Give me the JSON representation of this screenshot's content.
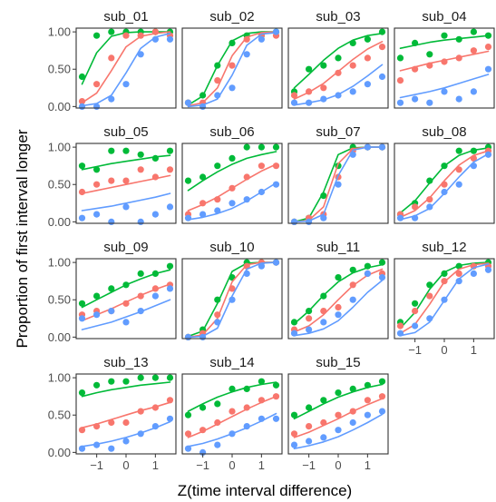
{
  "chart_data": {
    "type": "scatter",
    "layout": "faceted 4x4 grid",
    "xlabel": "Z(time interval difference)",
    "ylabel": "Proportion of first interval longer",
    "xlim": [
      -1.7,
      1.7
    ],
    "ylim": [
      -0.02,
      1.05
    ],
    "x_ticks": [
      -1,
      0,
      1
    ],
    "y_ticks": [
      0.0,
      0.5,
      1.0
    ],
    "y_tick_labels": [
      "0.00",
      "0.50",
      "1.00"
    ],
    "x_tick_labels": [
      "−1",
      "0",
      "1"
    ],
    "grid": false,
    "legend": "none",
    "series_colors": [
      "#00BA38",
      "#F8766D",
      "#619CFF"
    ],
    "x_points": [
      -1.5,
      -1.0,
      -0.5,
      0.0,
      0.5,
      1.0,
      1.5
    ],
    "panels": [
      {
        "title": "sub_01",
        "series": [
          {
            "values": [
              0.4,
              0.95,
              1.0,
              1.0,
              1.0,
              1.0,
              1.0
            ],
            "fit": [
              0.3,
              0.72,
              0.94,
              0.99,
              1.0,
              1.0,
              1.0
            ]
          },
          {
            "values": [
              0.07,
              0.3,
              0.65,
              0.95,
              0.95,
              1.0,
              0.95
            ],
            "fit": [
              0.05,
              0.18,
              0.48,
              0.8,
              0.94,
              0.98,
              1.0
            ]
          },
          {
            "values": [
              0.0,
              0.0,
              0.1,
              0.3,
              0.7,
              0.9,
              0.9
            ],
            "fit": [
              0.01,
              0.04,
              0.15,
              0.45,
              0.78,
              0.93,
              0.98
            ]
          }
        ]
      },
      {
        "title": "sub_02",
        "series": [
          {
            "values": [
              0.05,
              0.15,
              0.55,
              0.85,
              0.95,
              0.95,
              1.0
            ],
            "fit": [
              0.02,
              0.14,
              0.55,
              0.88,
              0.98,
              1.0,
              1.0
            ]
          },
          {
            "values": [
              0.05,
              0.05,
              0.35,
              0.55,
              0.9,
              0.95,
              0.95
            ],
            "fit": [
              0.01,
              0.05,
              0.25,
              0.68,
              0.93,
              0.99,
              1.0
            ]
          },
          {
            "values": [
              0.05,
              0.0,
              0.15,
              0.25,
              0.7,
              0.9,
              1.0
            ],
            "fit": [
              0.0,
              0.02,
              0.1,
              0.42,
              0.82,
              0.97,
              0.99
            ]
          }
        ]
      },
      {
        "title": "sub_03",
        "series": [
          {
            "values": [
              0.2,
              0.5,
              0.55,
              0.65,
              0.85,
              0.9,
              1.0
            ],
            "fit": [
              0.25,
              0.43,
              0.62,
              0.78,
              0.89,
              0.95,
              0.98
            ]
          },
          {
            "values": [
              0.15,
              0.2,
              0.25,
              0.45,
              0.55,
              0.65,
              0.8
            ],
            "fit": [
              0.1,
              0.19,
              0.31,
              0.47,
              0.63,
              0.77,
              0.87
            ]
          },
          {
            "values": [
              0.05,
              0.05,
              0.1,
              0.15,
              0.2,
              0.3,
              0.4
            ],
            "fit": [
              0.02,
              0.05,
              0.09,
              0.16,
              0.27,
              0.41,
              0.56
            ]
          }
        ]
      },
      {
        "title": "sub_04",
        "series": [
          {
            "values": [
              0.65,
              0.85,
              0.7,
              0.95,
              0.9,
              1.0,
              0.95
            ],
            "fit": [
              0.78,
              0.82,
              0.86,
              0.89,
              0.91,
              0.93,
              0.95
            ]
          },
          {
            "values": [
              0.35,
              0.5,
              0.55,
              0.6,
              0.65,
              0.75,
              0.8
            ],
            "fit": [
              0.48,
              0.53,
              0.58,
              0.62,
              0.66,
              0.7,
              0.74
            ]
          },
          {
            "values": [
              0.05,
              0.1,
              0.05,
              0.2,
              0.1,
              0.2,
              0.5
            ],
            "fit": [
              0.12,
              0.16,
              0.2,
              0.25,
              0.31,
              0.37,
              0.43
            ]
          }
        ]
      },
      {
        "title": "sub_05",
        "series": [
          {
            "values": [
              0.75,
              0.7,
              0.95,
              0.95,
              0.9,
              0.85,
              0.95
            ],
            "fit": [
              0.7,
              0.74,
              0.78,
              0.81,
              0.84,
              0.87,
              0.89
            ]
          },
          {
            "values": [
              0.4,
              0.5,
              0.55,
              0.55,
              0.7,
              0.6,
              0.7
            ],
            "fit": [
              0.38,
              0.42,
              0.46,
              0.5,
              0.54,
              0.58,
              0.62
            ]
          },
          {
            "values": [
              0.05,
              0.1,
              0.0,
              0.2,
              0.0,
              0.1,
              0.2
            ],
            "fit": [
              0.15,
              0.18,
              0.21,
              0.25,
              0.29,
              0.33,
              0.38
            ]
          }
        ]
      },
      {
        "title": "sub_06",
        "series": [
          {
            "values": [
              0.55,
              0.6,
              0.75,
              0.85,
              1.0,
              1.0,
              1.0
            ],
            "fit": [
              0.42,
              0.55,
              0.67,
              0.77,
              0.85,
              0.9,
              0.94
            ]
          },
          {
            "values": [
              0.1,
              0.25,
              0.3,
              0.45,
              0.6,
              0.75,
              0.75
            ],
            "fit": [
              0.15,
              0.23,
              0.33,
              0.45,
              0.57,
              0.68,
              0.77
            ]
          },
          {
            "values": [
              0.05,
              0.1,
              0.15,
              0.25,
              0.3,
              0.4,
              0.5
            ],
            "fit": [
              0.03,
              0.06,
              0.11,
              0.18,
              0.28,
              0.4,
              0.52
            ]
          }
        ]
      },
      {
        "title": "sub_07",
        "series": [
          {
            "values": [
              0.0,
              0.05,
              0.35,
              0.75,
              1.0,
              1.0,
              1.0
            ],
            "fit": [
              0.0,
              0.05,
              0.4,
              0.9,
              0.99,
              1.0,
              1.0
            ]
          },
          {
            "values": [
              0.0,
              0.05,
              0.1,
              0.6,
              0.95,
              1.0,
              1.0
            ],
            "fit": [
              0.0,
              0.02,
              0.2,
              0.78,
              0.98,
              1.0,
              1.0
            ]
          },
          {
            "values": [
              0.0,
              0.0,
              0.05,
              0.5,
              0.9,
              1.0,
              1.0
            ],
            "fit": [
              0.0,
              0.01,
              0.1,
              0.62,
              0.96,
              1.0,
              1.0
            ]
          }
        ]
      },
      {
        "title": "sub_08",
        "series": [
          {
            "values": [
              0.1,
              0.25,
              0.55,
              0.75,
              0.95,
              0.95,
              1.0
            ],
            "fit": [
              0.12,
              0.28,
              0.52,
              0.75,
              0.89,
              0.96,
              0.99
            ]
          },
          {
            "values": [
              0.1,
              0.2,
              0.3,
              0.5,
              0.7,
              0.85,
              0.95
            ],
            "fit": [
              0.06,
              0.15,
              0.32,
              0.55,
              0.76,
              0.89,
              0.95
            ]
          },
          {
            "values": [
              0.05,
              0.05,
              0.2,
              0.4,
              0.5,
              0.75,
              0.9
            ],
            "fit": [
              0.03,
              0.08,
              0.18,
              0.38,
              0.6,
              0.8,
              0.91
            ]
          }
        ]
      },
      {
        "title": "sub_09",
        "series": [
          {
            "values": [
              0.45,
              0.55,
              0.65,
              0.7,
              0.85,
              0.85,
              0.95
            ],
            "fit": [
              0.4,
              0.5,
              0.6,
              0.7,
              0.78,
              0.85,
              0.9
            ]
          },
          {
            "values": [
              0.3,
              0.35,
              0.35,
              0.45,
              0.55,
              0.65,
              0.7
            ],
            "fit": [
              0.22,
              0.3,
              0.38,
              0.47,
              0.56,
              0.64,
              0.71
            ]
          },
          {
            "values": [
              0.25,
              0.3,
              0.35,
              0.2,
              0.35,
              0.55,
              0.65
            ],
            "fit": [
              0.1,
              0.15,
              0.2,
              0.27,
              0.34,
              0.42,
              0.5
            ]
          }
        ]
      },
      {
        "title": "sub_10",
        "series": [
          {
            "values": [
              0.0,
              0.1,
              0.5,
              0.8,
              1.0,
              1.0,
              1.0
            ],
            "fit": [
              0.01,
              0.08,
              0.45,
              0.88,
              0.99,
              1.0,
              1.0
            ]
          },
          {
            "values": [
              0.0,
              0.05,
              0.3,
              0.65,
              0.95,
              1.0,
              1.0
            ],
            "fit": [
              0.0,
              0.03,
              0.25,
              0.74,
              0.97,
              1.0,
              1.0
            ]
          },
          {
            "values": [
              0.0,
              0.0,
              0.2,
              0.5,
              0.85,
              0.95,
              1.0
            ],
            "fit": [
              0.0,
              0.01,
              0.12,
              0.55,
              0.91,
              0.99,
              1.0
            ]
          }
        ]
      },
      {
        "title": "sub_11",
        "series": [
          {
            "values": [
              0.2,
              0.35,
              0.55,
              0.8,
              0.9,
              0.95,
              1.0
            ],
            "fit": [
              0.18,
              0.35,
              0.56,
              0.74,
              0.86,
              0.93,
              0.97
            ]
          },
          {
            "values": [
              0.1,
              0.25,
              0.35,
              0.4,
              0.7,
              0.85,
              0.85
            ],
            "fit": [
              0.07,
              0.15,
              0.3,
              0.5,
              0.69,
              0.83,
              0.91
            ]
          },
          {
            "values": [
              0.05,
              0.1,
              0.2,
              0.3,
              0.5,
              0.85,
              0.8
            ],
            "fit": [
              0.02,
              0.05,
              0.11,
              0.22,
              0.4,
              0.6,
              0.76
            ]
          }
        ]
      },
      {
        "title": "sub_12",
        "series": [
          {
            "values": [
              0.2,
              0.45,
              0.7,
              0.85,
              0.95,
              0.95,
              1.0
            ],
            "fit": [
              0.12,
              0.33,
              0.64,
              0.87,
              0.96,
              0.99,
              1.0
            ]
          },
          {
            "values": [
              0.15,
              0.35,
              0.55,
              0.75,
              0.85,
              0.95,
              0.95
            ],
            "fit": [
              0.05,
              0.17,
              0.44,
              0.74,
              0.91,
              0.97,
              0.99
            ]
          },
          {
            "values": [
              0.05,
              0.15,
              0.25,
              0.5,
              0.75,
              0.85,
              0.9
            ],
            "fit": [
              0.02,
              0.06,
              0.2,
              0.49,
              0.78,
              0.93,
              0.98
            ]
          }
        ]
      },
      {
        "title": "sub_13",
        "series": [
          {
            "values": [
              0.8,
              0.9,
              0.95,
              0.95,
              1.0,
              1.0,
              1.0
            ],
            "fit": [
              0.75,
              0.8,
              0.84,
              0.87,
              0.9,
              0.92,
              0.94
            ]
          },
          {
            "values": [
              0.3,
              0.35,
              0.4,
              0.4,
              0.55,
              0.6,
              0.7
            ],
            "fit": [
              0.33,
              0.38,
              0.44,
              0.5,
              0.56,
              0.61,
              0.67
            ]
          },
          {
            "values": [
              0.05,
              0.1,
              0.05,
              0.15,
              0.25,
              0.35,
              0.45
            ],
            "fit": [
              0.08,
              0.11,
              0.15,
              0.2,
              0.26,
              0.33,
              0.41
            ]
          }
        ]
      },
      {
        "title": "sub_14",
        "series": [
          {
            "values": [
              0.5,
              0.6,
              0.65,
              0.85,
              0.85,
              0.95,
              0.9
            ],
            "fit": [
              0.55,
              0.65,
              0.74,
              0.81,
              0.87,
              0.91,
              0.94
            ]
          },
          {
            "values": [
              0.25,
              0.3,
              0.4,
              0.55,
              0.6,
              0.7,
              0.75
            ],
            "fit": [
              0.2,
              0.28,
              0.38,
              0.48,
              0.58,
              0.67,
              0.75
            ]
          },
          {
            "values": [
              0.05,
              0.0,
              0.1,
              0.25,
              0.35,
              0.45,
              0.45
            ],
            "fit": [
              0.08,
              0.12,
              0.18,
              0.25,
              0.33,
              0.42,
              0.52
            ]
          }
        ]
      },
      {
        "title": "sub_15",
        "series": [
          {
            "values": [
              0.5,
              0.6,
              0.7,
              0.8,
              0.85,
              0.9,
              0.95
            ],
            "fit": [
              0.45,
              0.55,
              0.65,
              0.74,
              0.81,
              0.87,
              0.91
            ]
          },
          {
            "values": [
              0.25,
              0.35,
              0.4,
              0.5,
              0.55,
              0.7,
              0.75
            ],
            "fit": [
              0.2,
              0.27,
              0.36,
              0.45,
              0.55,
              0.64,
              0.72
            ]
          },
          {
            "values": [
              0.1,
              0.15,
              0.2,
              0.3,
              0.4,
              0.5,
              0.55
            ],
            "fit": [
              0.05,
              0.09,
              0.14,
              0.21,
              0.3,
              0.4,
              0.51
            ]
          }
        ]
      }
    ]
  }
}
